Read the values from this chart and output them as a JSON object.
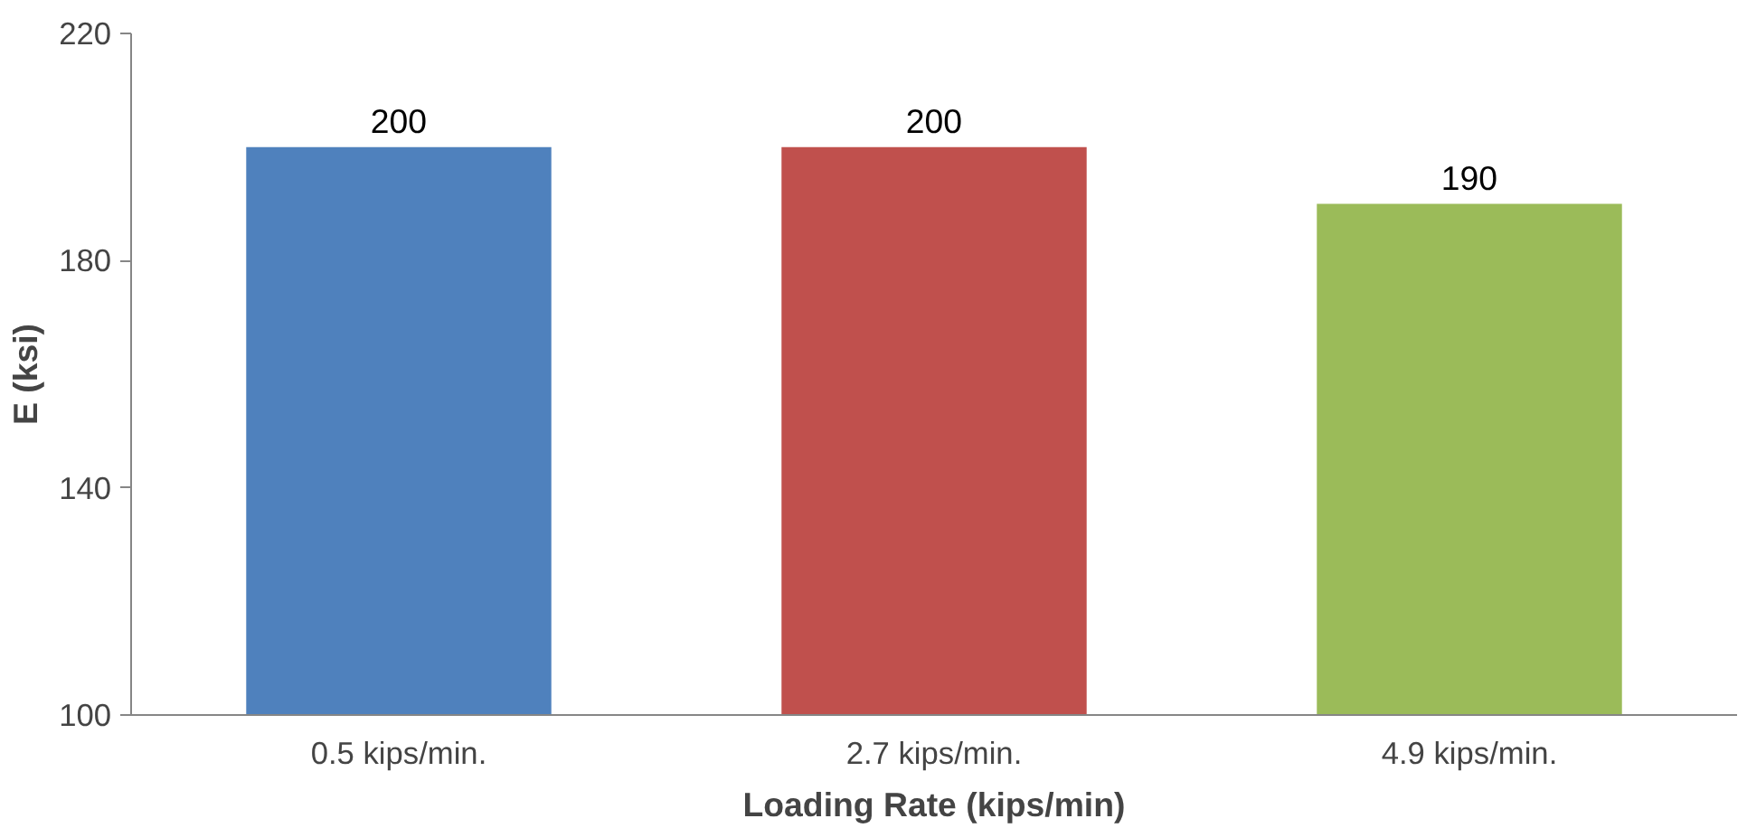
{
  "chart_data": {
    "type": "bar",
    "xlabel": "Loading Rate (kips/min)",
    "ylabel": "E (ksi)",
    "categories": [
      "0.5 kips/min.",
      "2.7 kips/min.",
      "4.9 kips/min."
    ],
    "values": [
      200,
      200,
      190
    ],
    "colors": [
      "#4f81bd",
      "#c0504d",
      "#9bbb59"
    ],
    "ylim": [
      100,
      220
    ],
    "yticks": [
      100,
      140,
      180,
      220
    ],
    "grid": false,
    "data_labels": true
  }
}
